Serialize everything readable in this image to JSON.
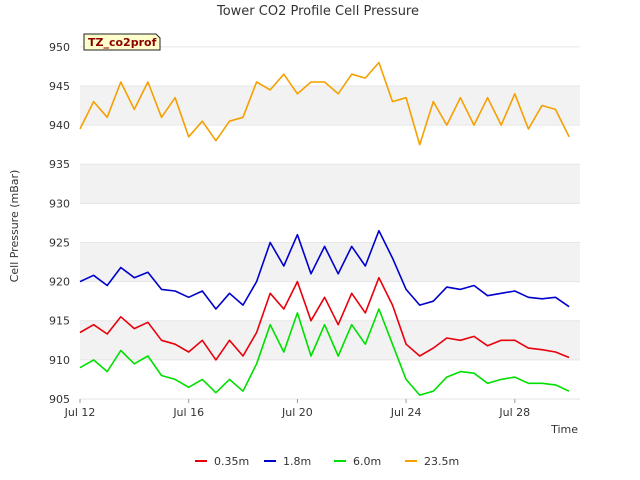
{
  "chart_data": {
    "type": "line",
    "title": "Tower CO2 Profile Cell Pressure",
    "tag": "TZ_co2prof",
    "xlabel": "Time",
    "ylabel": "Cell Pressure (mBar)",
    "xlim": [
      0,
      18.4
    ],
    "ylim": [
      905,
      951
    ],
    "x_ticks": [
      {
        "x": 0,
        "label": "Jul 12"
      },
      {
        "x": 4,
        "label": "Jul 16"
      },
      {
        "x": 8,
        "label": "Jul 20"
      },
      {
        "x": 12,
        "label": "Jul 24"
      },
      {
        "x": 16,
        "label": "Jul 28"
      }
    ],
    "y_ticks": [
      905,
      910,
      915,
      920,
      925,
      930,
      935,
      940,
      945,
      950
    ],
    "grid": "horizontal bands",
    "legend_position": "bottom",
    "series": [
      {
        "name": "0.35m",
        "color": "#e8000b",
        "x": [
          0,
          0.5,
          1,
          1.5,
          2,
          2.5,
          3,
          3.5,
          4,
          4.5,
          5,
          5.5,
          6,
          6.5,
          7,
          7.5,
          8,
          8.5,
          9,
          9.5,
          10,
          10.5,
          11,
          11.5,
          12,
          12.5,
          13,
          13.5,
          14,
          14.5,
          15,
          15.5,
          16,
          16.5,
          17,
          17.5,
          18
        ],
        "values": [
          913.5,
          914.5,
          913.3,
          915.5,
          914.0,
          914.8,
          912.5,
          912.0,
          911.0,
          912.5,
          910.0,
          912.5,
          910.5,
          913.5,
          918.5,
          916.5,
          920.0,
          915.0,
          918.0,
          914.5,
          918.5,
          916.0,
          920.5,
          917.0,
          912.0,
          910.5,
          911.5,
          912.8,
          912.5,
          913.0,
          911.8,
          912.5,
          912.5,
          911.5,
          911.3,
          911.0,
          910.3
        ]
      },
      {
        "name": "1.8m",
        "color": "#0000cc",
        "x": [
          0,
          0.5,
          1,
          1.5,
          2,
          2.5,
          3,
          3.5,
          4,
          4.5,
          5,
          5.5,
          6,
          6.5,
          7,
          7.5,
          8,
          8.5,
          9,
          9.5,
          10,
          10.5,
          11,
          11.5,
          12,
          12.5,
          13,
          13.5,
          14,
          14.5,
          15,
          15.5,
          16,
          16.5,
          17,
          17.5,
          18
        ],
        "values": [
          920.0,
          920.8,
          919.5,
          921.8,
          920.5,
          921.2,
          919.0,
          918.8,
          918.0,
          918.8,
          916.5,
          918.5,
          917.0,
          920.0,
          925.0,
          922.0,
          926.0,
          921.0,
          924.5,
          921.0,
          924.5,
          922.0,
          926.5,
          923.0,
          919.0,
          917.0,
          917.5,
          919.3,
          919.0,
          919.5,
          918.2,
          918.5,
          918.8,
          918.0,
          917.8,
          918.0,
          916.8
        ]
      },
      {
        "name": "6.0m",
        "color": "#00e000",
        "x": [
          0,
          0.5,
          1,
          1.5,
          2,
          2.5,
          3,
          3.5,
          4,
          4.5,
          5,
          5.5,
          6,
          6.5,
          7,
          7.5,
          8,
          8.5,
          9,
          9.5,
          10,
          10.5,
          11,
          11.5,
          12,
          12.5,
          13,
          13.5,
          14,
          14.5,
          15,
          15.5,
          16,
          16.5,
          17,
          17.5,
          18
        ],
        "values": [
          909.0,
          910.0,
          908.5,
          911.2,
          909.5,
          910.5,
          908.0,
          907.5,
          906.5,
          907.5,
          905.8,
          907.5,
          906.0,
          909.5,
          914.5,
          911.0,
          916.0,
          910.5,
          914.5,
          910.5,
          914.5,
          912.0,
          916.5,
          912.0,
          907.5,
          905.5,
          906.0,
          907.8,
          908.5,
          908.3,
          907.0,
          907.5,
          907.8,
          907.0,
          907.0,
          906.8,
          906.0
        ]
      },
      {
        "name": "23.5m",
        "color": "#f5a000",
        "x": [
          0,
          0.5,
          1,
          1.5,
          2,
          2.5,
          3,
          3.5,
          4,
          4.5,
          5,
          5.5,
          6,
          6.5,
          7,
          7.5,
          8,
          8.5,
          9,
          9.5,
          10,
          10.5,
          11,
          11.5,
          12,
          12.5,
          13,
          13.5,
          14,
          14.5,
          15,
          15.5,
          16,
          16.5,
          17,
          17.5,
          18
        ],
        "values": [
          939.5,
          943.0,
          941.0,
          945.5,
          942.0,
          945.5,
          941.0,
          943.5,
          938.5,
          940.5,
          938.0,
          940.5,
          941.0,
          945.5,
          944.5,
          946.5,
          944.0,
          945.5,
          945.5,
          944.0,
          946.5,
          946.0,
          948.0,
          943.0,
          943.5,
          937.5,
          943.0,
          940.0,
          943.5,
          940.0,
          943.5,
          940.0,
          944.0,
          939.5,
          942.5,
          942.0,
          938.5
        ]
      }
    ]
  }
}
